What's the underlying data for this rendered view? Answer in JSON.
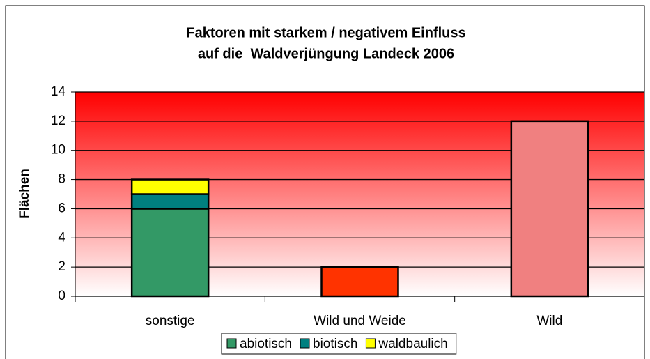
{
  "chart_data": {
    "type": "stacked_bar",
    "title": [
      "Faktoren mit starkem / negativem Einfluss",
      "auf die  Waldverjüngung Landeck 2006"
    ],
    "y_label": "Flächen",
    "categories": [
      "sonstige",
      "Wild und Weide",
      "Wild"
    ],
    "series": [
      {
        "name": "abiotisch",
        "color": "#339966",
        "values": [
          6,
          null,
          null
        ]
      },
      {
        "name": "biotisch",
        "color": "#008080",
        "values": [
          1,
          null,
          null
        ]
      },
      {
        "name": "waldbaulich",
        "color": "#ffff00",
        "values": [
          1,
          null,
          null
        ]
      },
      {
        "color": "#ff3300",
        "values": [
          null,
          2,
          null
        ]
      },
      {
        "color": "#f08080",
        "values": [
          null,
          null,
          12
        ]
      }
    ],
    "ylim": [
      0,
      14
    ],
    "yticks": [
      0,
      2,
      4,
      6,
      8,
      10,
      12,
      14
    ],
    "grid": true,
    "legend": "bottom"
  }
}
